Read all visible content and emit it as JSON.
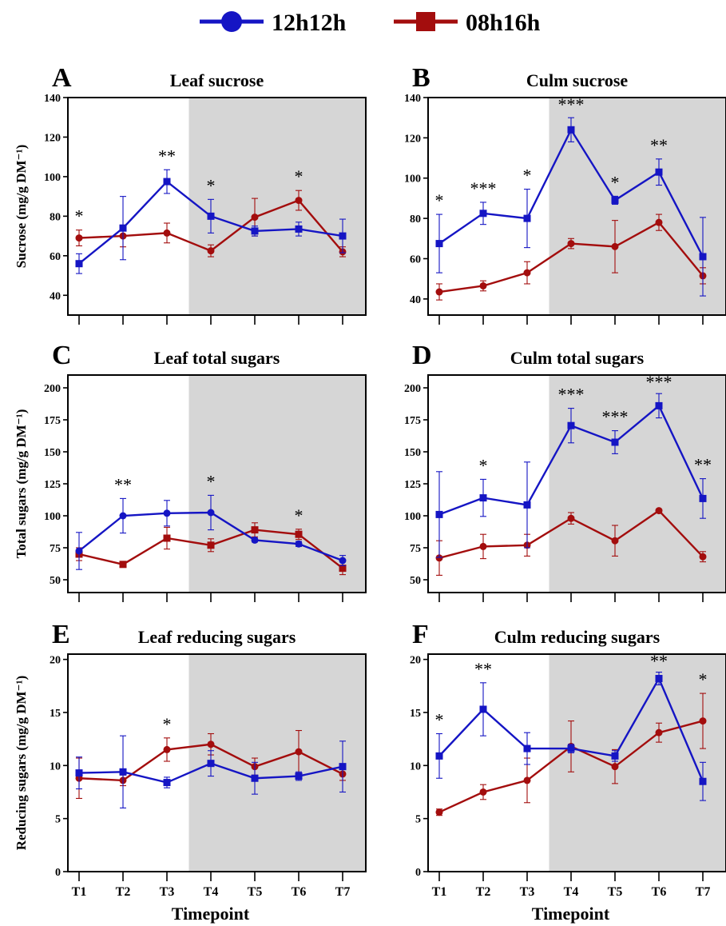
{
  "legend": [
    {
      "name": "12h12h",
      "color": "#1515c4",
      "marker": "circle"
    },
    {
      "name": "08h16h",
      "color": "#a30d0d",
      "marker": "square"
    }
  ],
  "colors": {
    "blue": "#1515c4",
    "red": "#a30d0d",
    "shade": "#d6d6d6"
  },
  "chart_data": [
    {
      "panel": "A",
      "title": "Leaf sucrose",
      "type": "line",
      "ylabel": "Sucrose (mg/g DM⁻¹)",
      "ylim": [
        30,
        140
      ],
      "yticks": [
        40,
        60,
        80,
        100,
        120,
        140
      ],
      "xlabel": "",
      "xticklabels": [],
      "categories": [
        "T1",
        "T2",
        "T3",
        "T4",
        "T5",
        "T6",
        "T7"
      ],
      "shaded_from": "T4",
      "series": [
        {
          "name": "12h12h",
          "values": [
            56,
            74,
            97.5,
            80,
            72.5,
            73.5,
            70
          ],
          "errors": [
            5,
            16,
            6,
            8.5,
            2.5,
            3.5,
            8.5
          ]
        },
        {
          "name": "08h16h",
          "values": [
            69,
            70,
            71.5,
            62.5,
            79.5,
            88,
            62
          ],
          "errors": [
            4,
            5.5,
            5,
            3,
            9.5,
            5,
            2.5
          ]
        }
      ],
      "significance": [
        "*",
        "",
        "**",
        "*",
        "",
        "*",
        ""
      ]
    },
    {
      "panel": "B",
      "title": "Culm sucrose",
      "type": "line",
      "ylabel": "",
      "ylim": [
        32,
        140
      ],
      "yticks": [
        40,
        60,
        80,
        100,
        120,
        140
      ],
      "xlabel": "",
      "xticklabels": [],
      "categories": [
        "T1",
        "T2",
        "T3",
        "T4",
        "T5",
        "T6",
        "T7"
      ],
      "shaded_from": "T4",
      "series": [
        {
          "name": "12h12h",
          "values": [
            67.5,
            82.5,
            80,
            124,
            89,
            103,
            61
          ],
          "errors": [
            14.5,
            5.5,
            14.5,
            6,
            2,
            6.5,
            19.5
          ]
        },
        {
          "name": "08h16h",
          "values": [
            43.5,
            46.5,
            53,
            67.5,
            66,
            78,
            51.5
          ],
          "errors": [
            4,
            2.5,
            5.5,
            2.5,
            13,
            4,
            4
          ]
        }
      ],
      "significance": [
        "*",
        "***",
        "*",
        "***",
        "*",
        "**",
        ""
      ]
    },
    {
      "panel": "C",
      "title": "Leaf total sugars",
      "type": "line",
      "ylabel": "Total sugars (mg/g DM⁻¹)",
      "ylim": [
        40,
        210
      ],
      "yticks": [
        50,
        75,
        100,
        125,
        150,
        175,
        200
      ],
      "xlabel": "",
      "xticklabels": [],
      "categories": [
        "T1",
        "T2",
        "T3",
        "T4",
        "T5",
        "T6",
        "T7"
      ],
      "shaded_from": "T4",
      "series": [
        {
          "name": "12h12h",
          "values": [
            72.5,
            100,
            102,
            102.5,
            81,
            78,
            65
          ],
          "errors": [
            14.5,
            13.5,
            10,
            13.5,
            1.5,
            2,
            4
          ]
        },
        {
          "name": "08h16h",
          "values": [
            70,
            62,
            82.5,
            77,
            89,
            85.5,
            59
          ],
          "errors": [
            5,
            2,
            8.5,
            5,
            5.5,
            4,
            5
          ]
        }
      ],
      "significance": [
        "",
        "**",
        "",
        "*",
        "",
        "*",
        ""
      ]
    },
    {
      "panel": "D",
      "title": "Culm total sugars",
      "type": "line",
      "ylabel": "",
      "ylim": [
        40,
        210
      ],
      "yticks": [
        50,
        75,
        100,
        125,
        150,
        175,
        200
      ],
      "xlabel": "",
      "xticklabels": [],
      "categories": [
        "T1",
        "T2",
        "T3",
        "T4",
        "T5",
        "T6",
        "T7"
      ],
      "shaded_from": "T4",
      "series": [
        {
          "name": "12h12h",
          "values": [
            101,
            114,
            108.5,
            170.5,
            157.5,
            186,
            113.5
          ],
          "errors": [
            33.5,
            14.5,
            33.5,
            13.5,
            9,
            9.5,
            15.5
          ]
        },
        {
          "name": "08h16h",
          "values": [
            67,
            76,
            77,
            98,
            80.5,
            104,
            68
          ],
          "errors": [
            13.5,
            9.5,
            8.5,
            4.5,
            12,
            1,
            4
          ]
        }
      ],
      "significance": [
        "",
        "*",
        "",
        "***",
        "***",
        "***",
        "**"
      ]
    },
    {
      "panel": "E",
      "title": "Leaf reducing sugars",
      "type": "line",
      "ylabel": "Reducing sugars (mg/g DM⁻¹)",
      "ylim": [
        0,
        20.5
      ],
      "yticks": [
        0,
        5,
        10,
        15,
        20
      ],
      "xlabel": "Timepoint",
      "xticklabels": [
        "T1",
        "T2",
        "T3",
        "T4",
        "T5",
        "T6",
        "T7"
      ],
      "categories": [
        "T1",
        "T2",
        "T3",
        "T4",
        "T5",
        "T6",
        "T7"
      ],
      "shaded_from": "T4",
      "series": [
        {
          "name": "12h12h",
          "values": [
            9.3,
            9.4,
            8.4,
            10.2,
            8.8,
            9,
            9.9
          ],
          "errors": [
            1.5,
            3.4,
            0.5,
            1.2,
            1.5,
            0.4,
            2.4
          ]
        },
        {
          "name": "08h16h",
          "values": [
            8.8,
            8.6,
            11.5,
            12,
            9.9,
            11.3,
            9.2
          ],
          "errors": [
            1.9,
            0.5,
            1.1,
            1,
            0.8,
            2,
            0.6
          ]
        }
      ],
      "significance": [
        "",
        "",
        "*",
        "",
        "",
        "",
        ""
      ]
    },
    {
      "panel": "F",
      "title": "Culm reducing sugars",
      "type": "line",
      "ylabel": "",
      "ylim": [
        0,
        20.5
      ],
      "yticks": [
        0,
        5,
        10,
        15,
        20
      ],
      "xlabel": "Timepoint",
      "xticklabels": [
        "T1",
        "T2",
        "T3",
        "T4",
        "T5",
        "T6",
        "T7"
      ],
      "categories": [
        "T1",
        "T2",
        "T3",
        "T4",
        "T5",
        "T6",
        "T7"
      ],
      "shaded_from": "T4",
      "series": [
        {
          "name": "12h12h",
          "values": [
            10.9,
            15.3,
            11.6,
            11.6,
            10.9,
            18.2,
            8.5
          ],
          "errors": [
            2.1,
            2.5,
            1.5,
            0.4,
            0.5,
            0.6,
            1.8
          ]
        },
        {
          "name": "08h16h",
          "values": [
            5.6,
            7.5,
            8.6,
            11.8,
            9.9,
            13.1,
            14.2
          ],
          "errors": [
            0.3,
            0.7,
            2.1,
            2.4,
            1.6,
            0.9,
            2.6
          ]
        }
      ],
      "significance": [
        "*",
        "**",
        "",
        "",
        "",
        "**",
        "*"
      ]
    }
  ]
}
